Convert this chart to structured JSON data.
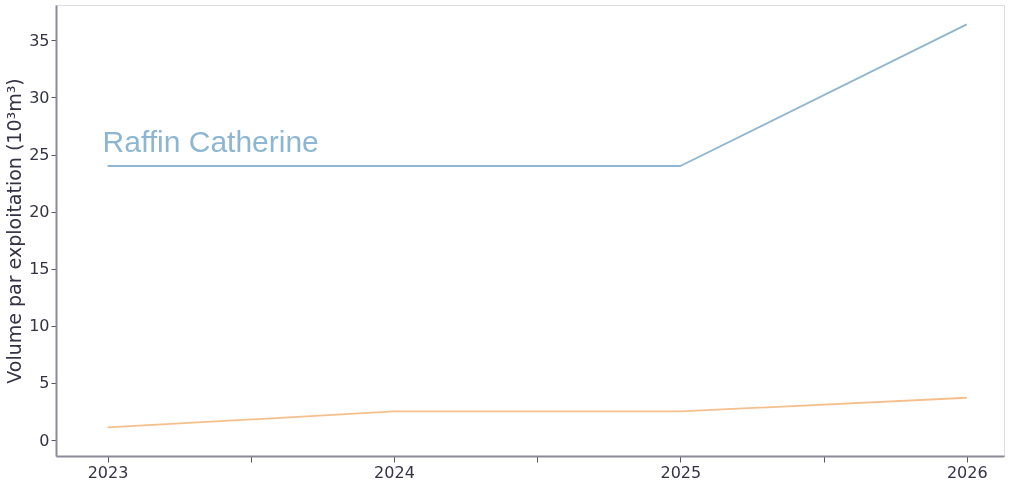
{
  "chart_data": {
    "type": "line",
    "ylabel": "Volume par exploitation (10³m³)",
    "x": [
      2023,
      2024,
      2025,
      2026
    ],
    "series": [
      {
        "name": "Raffin Catherine",
        "color": "#8db6d2",
        "values": [
          24,
          24,
          24,
          36.4
        ]
      },
      {
        "color": "#f5bf8c",
        "values": [
          1.1,
          2.5,
          2.5,
          3.7
        ]
      }
    ],
    "xlim": [
      2022.82,
      2026.13
    ],
    "ylim": [
      -1.4,
      38.1
    ],
    "xticks": [
      2023,
      {
        "value": 2023.5,
        "label": null
      },
      2024,
      {
        "value": 2024.5,
        "label": null
      },
      2025,
      {
        "value": 2025.5,
        "label": null
      },
      2026
    ],
    "yticks": [
      0,
      5,
      10,
      15,
      20,
      25,
      30,
      35
    ],
    "grid": false,
    "marker": "none",
    "line_style": "solid"
  }
}
